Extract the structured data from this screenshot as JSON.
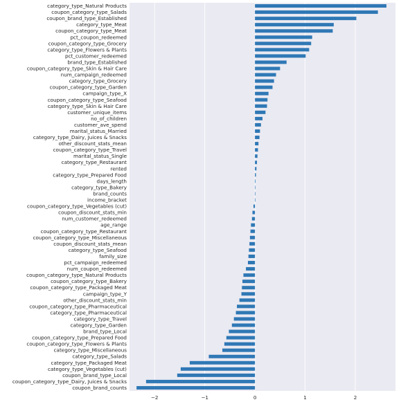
{
  "chart_data": {
    "type": "bar",
    "orientation": "horizontal",
    "title": "",
    "xlabel": "",
    "ylabel": "",
    "grid": true,
    "xlim": [
      -2.5,
      2.8
    ],
    "x_ticks": [
      -2,
      -1,
      0,
      1,
      2
    ],
    "x_tick_labels": [
      "−2",
      "−1",
      "0",
      "1",
      "2"
    ],
    "bar_color": "#2f78b5",
    "background_color": "#eaeaf2",
    "grid_color": "#ffffff",
    "categories": [
      "category_type_Natural Products",
      "coupon_category_type_Salads",
      "coupon_brand_type_Established",
      "category_type_Meat",
      "coupon_category_type_Meat",
      "pct_coupon_redeemed",
      "coupon_category_type_Grocery",
      "category_type_Flowers & Plants",
      "pct_customer_redeemed",
      "brand_type_Established",
      "coupon_category_type_Skin & Hair Care",
      "num_campaign_redeemed",
      "category_type_Grocery",
      "coupon_category_type_Garden",
      "campaign_type_X",
      "coupon_category_type_Seafood",
      "category_type_Skin & Hair Care",
      "customer_unique_items",
      "no_of_children",
      "customer_ave_spend",
      "marital_status_Married",
      "category_type_Dairy, Juices & Snacks",
      "other_discount_stats_mean",
      "coupon_category_type_Travel",
      "marital_status_Single",
      "category_type_Restaurant",
      "rented",
      "category_type_Prepared Food",
      "days_length",
      "category_type_Bakery",
      "brand_counts",
      "income_bracket",
      "coupon_category_type_Vegetables (cut)",
      "coupon_discount_stats_min",
      "num_customer_redeemed",
      "age_range",
      "coupon_category_type_Restaurant",
      "coupon_category_type_Miscellaneous",
      "coupon_discount_stats_mean",
      "category_type_Seafood",
      "family_size",
      "pct_campaign_redeemed",
      "num_coupon_redeemed",
      "coupon_category_type_Natural Products",
      "coupon_category_type_Bakery",
      "coupon_category_type_Packaged Meat",
      "campaign_type_Y",
      "other_discount_stats_min",
      "coupon_category_type_Pharmaceutical",
      "category_type_Pharmaceutical",
      "category_type_Travel",
      "category_type_Garden",
      "brand_type_Local",
      "coupon_category_type_Prepared Food",
      "coupon_category_type_Flowers & Plants",
      "category_type_Miscellaneous",
      "category_type_Salads",
      "category_type_Packaged Meat",
      "category_type_Vegetables (cut)",
      "coupon_brand_type_Local",
      "coupon_category_type_Dairy, Juices & Snacks",
      "coupon_brand_counts"
    ],
    "values": [
      2.62,
      2.45,
      2.02,
      1.57,
      1.55,
      1.14,
      1.12,
      1.08,
      1.01,
      0.63,
      0.5,
      0.42,
      0.38,
      0.35,
      0.27,
      0.25,
      0.24,
      0.21,
      0.15,
      0.12,
      0.1,
      0.09,
      0.07,
      0.06,
      0.05,
      0.04,
      0.03,
      0.02,
      0.01,
      0.0,
      0.0,
      0.0,
      -0.03,
      -0.05,
      -0.06,
      -0.08,
      -0.09,
      -0.1,
      -0.11,
      -0.12,
      -0.13,
      -0.14,
      -0.18,
      -0.23,
      -0.25,
      -0.26,
      -0.27,
      -0.31,
      -0.36,
      -0.38,
      -0.42,
      -0.46,
      -0.52,
      -0.57,
      -0.61,
      -0.65,
      -0.92,
      -1.3,
      -1.48,
      -1.55,
      -2.17,
      -2.36
    ]
  }
}
